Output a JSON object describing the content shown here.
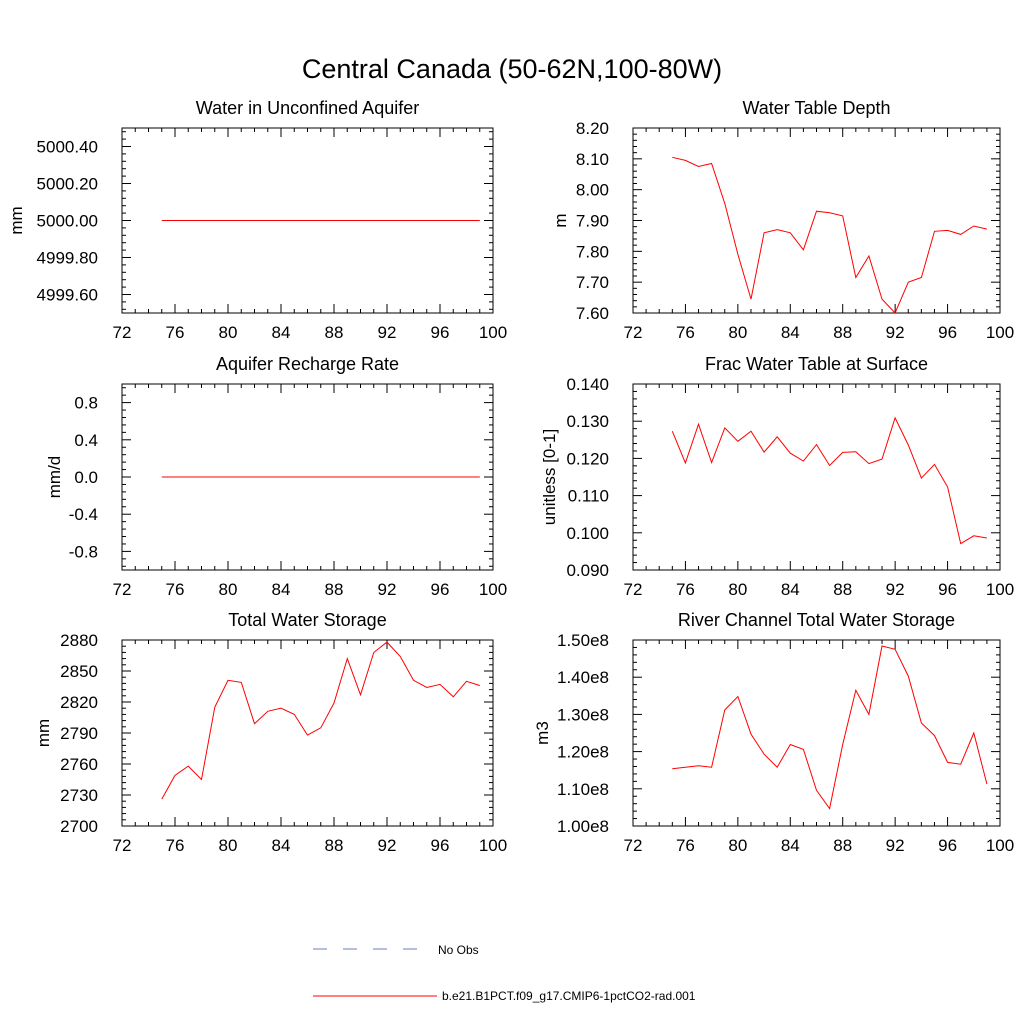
{
  "figure": {
    "title": "Central Canada (50-62N,100-80W)"
  },
  "legend": [
    {
      "label": "No Obs",
      "color": "#6a7fc0",
      "dash": true
    },
    {
      "label": "b.e21.B1PCT.f09_g17.CMIP6-1pctCO2-rad.001",
      "color": "#ff0000",
      "dash": false
    }
  ],
  "chart_data": [
    {
      "type": "line",
      "title": "Water in Unconfined Aquifer",
      "xlabel": "",
      "ylabel": "mm",
      "xlim": [
        72,
        100
      ],
      "ylim": [
        4999.5,
        5000.5
      ],
      "xticks": [
        72,
        76,
        80,
        84,
        88,
        92,
        96,
        100
      ],
      "yticks": [
        4999.6,
        4999.8,
        5000.0,
        5000.2,
        5000.4
      ],
      "ytick_labels": [
        "4999.60",
        "4999.80",
        "5000.00",
        "5000.20",
        "5000.40"
      ],
      "series": [
        {
          "color": "#ff0000",
          "x": [
            75,
            99
          ],
          "values": [
            5000.0,
            5000.0
          ]
        }
      ]
    },
    {
      "type": "line",
      "title": "Water Table Depth",
      "xlabel": "",
      "ylabel": "m",
      "xlim": [
        72,
        100
      ],
      "ylim": [
        7.6,
        8.2
      ],
      "xticks": [
        72,
        76,
        80,
        84,
        88,
        92,
        96,
        100
      ],
      "yticks": [
        7.6,
        7.7,
        7.8,
        7.9,
        8.0,
        8.1,
        8.2
      ],
      "ytick_labels": [
        "7.60",
        "7.70",
        "7.80",
        "7.90",
        "8.00",
        "8.10",
        "8.20"
      ],
      "series": [
        {
          "color": "#ff0000",
          "x": [
            75,
            76,
            77,
            78,
            79,
            80,
            81,
            82,
            83,
            84,
            85,
            86,
            87,
            88,
            89,
            90,
            91,
            92,
            93,
            94,
            95,
            96,
            97,
            98,
            99
          ],
          "values": [
            8.105,
            8.095,
            8.075,
            8.085,
            7.955,
            7.79,
            7.645,
            7.86,
            7.87,
            7.86,
            7.805,
            7.93,
            7.925,
            7.915,
            7.715,
            7.785,
            7.645,
            7.6,
            7.7,
            7.715,
            7.865,
            7.868,
            7.855,
            7.882,
            7.872
          ]
        }
      ]
    },
    {
      "type": "line",
      "title": "Aquifer Recharge Rate",
      "xlabel": "",
      "ylabel": "mm/d",
      "xlim": [
        72,
        100
      ],
      "ylim": [
        -1.0,
        1.0
      ],
      "xticks": [
        72,
        76,
        80,
        84,
        88,
        92,
        96,
        100
      ],
      "yticks": [
        -0.8,
        -0.4,
        0.0,
        0.4,
        0.8
      ],
      "ytick_labels": [
        "-0.8",
        "-0.4",
        "0.0",
        "0.4",
        "0.8"
      ],
      "series": [
        {
          "color": "#ff0000",
          "x": [
            75,
            99
          ],
          "values": [
            0.0,
            0.0
          ]
        }
      ]
    },
    {
      "type": "line",
      "title": "Frac Water Table at Surface",
      "xlabel": "",
      "ylabel": "unitless [0-1]",
      "xlim": [
        72,
        100
      ],
      "ylim": [
        0.09,
        0.14
      ],
      "xticks": [
        72,
        76,
        80,
        84,
        88,
        92,
        96,
        100
      ],
      "yticks": [
        0.09,
        0.1,
        0.11,
        0.12,
        0.13,
        0.14
      ],
      "ytick_labels": [
        "0.090",
        "0.100",
        "0.110",
        "0.120",
        "0.130",
        "0.140"
      ],
      "series": [
        {
          "color": "#ff0000",
          "x": [
            75,
            76,
            77,
            78,
            79,
            80,
            81,
            82,
            83,
            84,
            85,
            86,
            87,
            88,
            89,
            90,
            91,
            92,
            93,
            94,
            95,
            96,
            97,
            98,
            99
          ],
          "values": [
            0.1273,
            0.1188,
            0.1292,
            0.1189,
            0.1282,
            0.1246,
            0.1273,
            0.1217,
            0.1258,
            0.1214,
            0.1193,
            0.1237,
            0.1181,
            0.1216,
            0.1218,
            0.1186,
            0.1198,
            0.1309,
            0.1236,
            0.1147,
            0.1184,
            0.1123,
            0.0971,
            0.0992,
            0.0986
          ]
        }
      ]
    },
    {
      "type": "line",
      "title": "Total Water Storage",
      "xlabel": "",
      "ylabel": "mm",
      "xlim": [
        72,
        100
      ],
      "ylim": [
        2700,
        2880
      ],
      "xticks": [
        72,
        76,
        80,
        84,
        88,
        92,
        96,
        100
      ],
      "yticks": [
        2700,
        2730,
        2760,
        2790,
        2820,
        2850,
        2880
      ],
      "ytick_labels": [
        "2700",
        "2730",
        "2760",
        "2790",
        "2820",
        "2850",
        "2880"
      ],
      "series": [
        {
          "color": "#ff0000",
          "x": [
            75,
            76,
            77,
            78,
            79,
            80,
            81,
            82,
            83,
            84,
            85,
            86,
            87,
            88,
            89,
            90,
            91,
            92,
            93,
            94,
            95,
            96,
            97,
            98,
            99
          ],
          "values": [
            2726,
            2749,
            2758,
            2745,
            2815,
            2841,
            2839,
            2799,
            2811,
            2814,
            2808,
            2788,
            2795,
            2819,
            2862,
            2827,
            2868,
            2878,
            2864,
            2841,
            2834,
            2837,
            2825,
            2840,
            2836
          ]
        }
      ]
    },
    {
      "type": "line",
      "title": "River Channel Total Water Storage",
      "xlabel": "",
      "ylabel": "m3",
      "xlim": [
        72,
        100
      ],
      "ylim": [
        100000000,
        150000000
      ],
      "xticks": [
        72,
        76,
        80,
        84,
        88,
        92,
        96,
        100
      ],
      "yticks": [
        100000000,
        110000000,
        120000000,
        130000000,
        140000000,
        150000000
      ],
      "ytick_labels": [
        "1.00e8",
        "1.10e8",
        "1.20e8",
        "1.30e8",
        "1.40e8",
        "1.50e8"
      ],
      "series": [
        {
          "color": "#ff0000",
          "x": [
            75,
            76,
            77,
            78,
            79,
            80,
            81,
            82,
            83,
            84,
            85,
            86,
            87,
            88,
            89,
            90,
            91,
            92,
            93,
            94,
            95,
            96,
            97,
            98,
            99
          ],
          "values": [
            115400000,
            115800000,
            116200000,
            115800000,
            131200000,
            134800000,
            124700000,
            119300000,
            115800000,
            121900000,
            120600000,
            109600000,
            104700000,
            121900000,
            136500000,
            130000000,
            148400000,
            147500000,
            140300000,
            127700000,
            124300000,
            117100000,
            116600000,
            125000000,
            111300000
          ]
        }
      ]
    }
  ]
}
